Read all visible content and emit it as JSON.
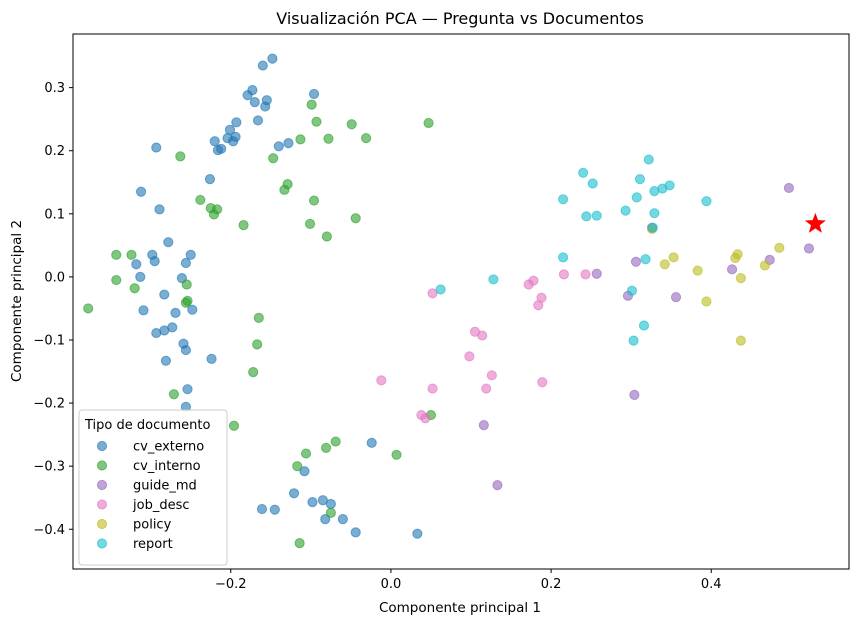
{
  "chart_data": {
    "type": "scatter",
    "title": "Visualización PCA — Pregunta vs Documentos",
    "xlabel": "Componente principal 1",
    "ylabel": "Componente principal 2",
    "xlim": [
      -0.397,
      0.572
    ],
    "ylim": [
      -0.463,
      0.385
    ],
    "xticks": [
      -0.2,
      0.0,
      0.2,
      0.4
    ],
    "xtick_labels": [
      "−0.2",
      "0.0",
      "0.2",
      "0.4"
    ],
    "yticks": [
      -0.4,
      -0.3,
      -0.2,
      -0.1,
      0.0,
      0.1,
      0.2,
      0.3
    ],
    "ytick_labels": [
      "−0.4",
      "−0.3",
      "−0.2",
      "−0.1",
      "0.0",
      "0.1",
      "0.2",
      "0.3"
    ],
    "grid": false,
    "legend": {
      "title": "Tipo de documento",
      "placement": "lower-left"
    },
    "series": [
      {
        "name": "cv_externo",
        "color": "#1f77b4",
        "points": [
          [
            -0.148,
            0.346
          ],
          [
            -0.16,
            0.335
          ],
          [
            -0.173,
            0.296
          ],
          [
            -0.179,
            0.288
          ],
          [
            -0.155,
            0.28
          ],
          [
            -0.17,
            0.277
          ],
          [
            -0.157,
            0.27
          ],
          [
            -0.096,
            0.29
          ],
          [
            -0.193,
            0.245
          ],
          [
            -0.166,
            0.248
          ],
          [
            -0.201,
            0.233
          ],
          [
            -0.194,
            0.222
          ],
          [
            -0.204,
            0.22
          ],
          [
            -0.197,
            0.215
          ],
          [
            -0.22,
            0.215
          ],
          [
            -0.212,
            0.203
          ],
          [
            -0.216,
            0.201
          ],
          [
            -0.14,
            0.207
          ],
          [
            -0.128,
            0.212
          ],
          [
            -0.293,
            0.205
          ],
          [
            -0.226,
            0.155
          ],
          [
            -0.312,
            0.135
          ],
          [
            -0.289,
            0.107
          ],
          [
            -0.278,
            0.055
          ],
          [
            -0.25,
            0.035
          ],
          [
            -0.298,
            0.035
          ],
          [
            -0.256,
            0.022
          ],
          [
            -0.295,
            0.025
          ],
          [
            -0.318,
            0.02
          ],
          [
            -0.313,
            0.0
          ],
          [
            -0.261,
            -0.002
          ],
          [
            -0.283,
            -0.028
          ],
          [
            -0.248,
            -0.052
          ],
          [
            -0.309,
            -0.053
          ],
          [
            -0.269,
            -0.057
          ],
          [
            -0.273,
            -0.08
          ],
          [
            -0.283,
            -0.085
          ],
          [
            -0.293,
            -0.089
          ],
          [
            -0.259,
            -0.106
          ],
          [
            -0.256,
            -0.116
          ],
          [
            -0.281,
            -0.133
          ],
          [
            -0.224,
            -0.13
          ],
          [
            -0.254,
            -0.178
          ],
          [
            -0.256,
            -0.206
          ],
          [
            -0.024,
            -0.263
          ],
          [
            -0.108,
            -0.308
          ],
          [
            -0.121,
            -0.343
          ],
          [
            -0.161,
            -0.368
          ],
          [
            -0.145,
            -0.369
          ],
          [
            -0.098,
            -0.357
          ],
          [
            -0.085,
            -0.354
          ],
          [
            -0.075,
            -0.36
          ],
          [
            -0.082,
            -0.384
          ],
          [
            -0.06,
            -0.384
          ],
          [
            -0.044,
            -0.405
          ],
          [
            0.033,
            -0.407
          ]
        ]
      },
      {
        "name": "cv_interno",
        "color": "#2ca02c",
        "points": [
          [
            -0.099,
            0.273
          ],
          [
            0.047,
            0.244
          ],
          [
            -0.093,
            0.246
          ],
          [
            -0.049,
            0.242
          ],
          [
            -0.078,
            0.219
          ],
          [
            -0.113,
            0.218
          ],
          [
            -0.031,
            0.22
          ],
          [
            -0.263,
            0.191
          ],
          [
            -0.147,
            0.188
          ],
          [
            -0.129,
            0.147
          ],
          [
            -0.133,
            0.138
          ],
          [
            -0.096,
            0.121
          ],
          [
            -0.238,
            0.122
          ],
          [
            -0.225,
            0.109
          ],
          [
            -0.217,
            0.107
          ],
          [
            -0.221,
            0.099
          ],
          [
            -0.101,
            0.084
          ],
          [
            -0.044,
            0.093
          ],
          [
            -0.184,
            0.082
          ],
          [
            -0.08,
            0.064
          ],
          [
            -0.343,
            0.035
          ],
          [
            -0.324,
            0.035
          ],
          [
            -0.255,
            -0.012
          ],
          [
            -0.343,
            -0.005
          ],
          [
            -0.32,
            -0.018
          ],
          [
            -0.254,
            -0.038
          ],
          [
            -0.256,
            -0.041
          ],
          [
            -0.378,
            -0.05
          ],
          [
            -0.165,
            -0.065
          ],
          [
            -0.167,
            -0.107
          ],
          [
            -0.172,
            -0.151
          ],
          [
            -0.271,
            -0.186
          ],
          [
            -0.196,
            -0.236
          ],
          [
            0.05,
            -0.219
          ],
          [
            -0.069,
            -0.261
          ],
          [
            -0.081,
            -0.271
          ],
          [
            -0.117,
            -0.3
          ],
          [
            -0.106,
            -0.28
          ],
          [
            0.007,
            -0.282
          ],
          [
            -0.075,
            -0.374
          ],
          [
            -0.114,
            -0.422
          ]
        ]
      },
      {
        "name": "guide_md",
        "color": "#9467bd",
        "points": [
          [
            0.497,
            0.141
          ],
          [
            0.522,
            0.045
          ],
          [
            0.473,
            0.027
          ],
          [
            0.426,
            0.012
          ],
          [
            0.257,
            0.005
          ],
          [
            0.306,
            0.024
          ],
          [
            0.326,
            0.078
          ],
          [
            0.296,
            -0.03
          ],
          [
            0.356,
            -0.032
          ],
          [
            0.116,
            -0.235
          ],
          [
            0.304,
            -0.187
          ],
          [
            0.133,
            -0.33
          ]
        ]
      },
      {
        "name": "job_desc",
        "color": "#e377c2",
        "points": [
          [
            0.178,
            -0.006
          ],
          [
            0.172,
            -0.012
          ],
          [
            0.216,
            0.004
          ],
          [
            0.243,
            0.004
          ],
          [
            0.188,
            -0.033
          ],
          [
            0.184,
            -0.045
          ],
          [
            0.052,
            -0.026
          ],
          [
            0.105,
            -0.087
          ],
          [
            0.114,
            -0.093
          ],
          [
            0.098,
            -0.126
          ],
          [
            0.126,
            -0.156
          ],
          [
            0.119,
            -0.177
          ],
          [
            0.189,
            -0.167
          ],
          [
            -0.012,
            -0.164
          ],
          [
            0.052,
            -0.177
          ],
          [
            0.038,
            -0.219
          ],
          [
            0.043,
            -0.224
          ]
        ]
      },
      {
        "name": "policy",
        "color": "#bcbd22",
        "points": [
          [
            0.326,
            0.076
          ],
          [
            0.353,
            0.031
          ],
          [
            0.342,
            0.02
          ],
          [
            0.383,
            0.01
          ],
          [
            0.433,
            0.036
          ],
          [
            0.43,
            0.03
          ],
          [
            0.485,
            0.046
          ],
          [
            0.467,
            0.018
          ],
          [
            0.437,
            -0.002
          ],
          [
            0.394,
            -0.039
          ],
          [
            0.437,
            -0.101
          ]
        ]
      },
      {
        "name": "report",
        "color": "#17becf",
        "points": [
          [
            0.322,
            0.186
          ],
          [
            0.24,
            0.165
          ],
          [
            0.252,
            0.148
          ],
          [
            0.311,
            0.155
          ],
          [
            0.348,
            0.145
          ],
          [
            0.329,
            0.136
          ],
          [
            0.339,
            0.14
          ],
          [
            0.215,
            0.123
          ],
          [
            0.307,
            0.126
          ],
          [
            0.394,
            0.12
          ],
          [
            0.293,
            0.105
          ],
          [
            0.329,
            0.101
          ],
          [
            0.244,
            0.096
          ],
          [
            0.257,
            0.097
          ],
          [
            0.327,
            0.078
          ],
          [
            0.215,
            0.031
          ],
          [
            0.318,
            0.028
          ],
          [
            0.301,
            -0.022
          ],
          [
            0.316,
            -0.077
          ],
          [
            0.303,
            -0.101
          ],
          [
            0.062,
            -0.02
          ],
          [
            0.128,
            -0.004
          ]
        ]
      }
    ],
    "query_point": {
      "x": 0.53,
      "y": 0.084,
      "marker": "star",
      "color": "#ff0000"
    }
  }
}
